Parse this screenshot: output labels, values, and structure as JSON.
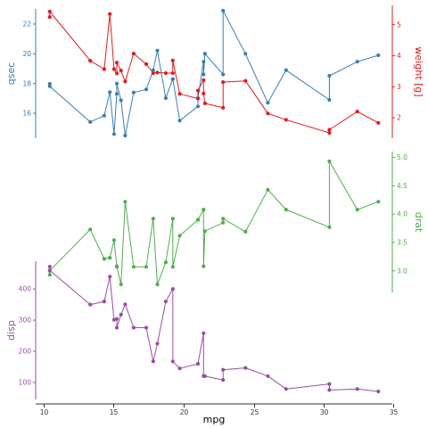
{
  "chart_data": {
    "type": "line",
    "x": [
      10.4,
      10.4,
      13.3,
      14.3,
      14.7,
      15.0,
      15.2,
      15.2,
      15.5,
      15.8,
      16.4,
      17.3,
      17.8,
      18.1,
      18.7,
      19.2,
      19.2,
      19.7,
      21.0,
      21.0,
      21.4,
      21.4,
      21.5,
      22.8,
      22.8,
      24.4,
      26.0,
      27.3,
      30.4,
      30.4,
      32.4,
      33.9
    ],
    "xlabel": "mpg",
    "xlim": [
      9.6,
      34.9
    ],
    "xticks": [
      "10",
      "15",
      "20",
      "25",
      "30",
      "35"
    ],
    "colors": {
      "qsec": "#377eb8",
      "weight": "#e41a1c",
      "drat": "#4daf4a",
      "disp": "#984ea3",
      "connector": "#333333"
    },
    "series": [
      {
        "name": "qsec",
        "ylabel": "qsec",
        "axis_side": "left",
        "ylim": [
          14.5,
          22.9
        ],
        "yticks": [
          "16",
          "18",
          "20",
          "22"
        ],
        "values": [
          17.98,
          17.82,
          15.41,
          15.84,
          17.42,
          14.6,
          17.3,
          18.0,
          16.87,
          14.5,
          17.4,
          17.6,
          18.9,
          20.22,
          17.02,
          18.3,
          18.3,
          15.5,
          16.46,
          17.02,
          19.47,
          18.61,
          20.01,
          18.61,
          22.9,
          20.0,
          16.7,
          18.9,
          16.9,
          18.52,
          19.47,
          19.9
        ]
      },
      {
        "name": "weight",
        "ylabel": "weight [g]",
        "axis_side": "right",
        "ylim": [
          1.513,
          5.424
        ],
        "yticks": [
          "2",
          "3",
          "4",
          "5"
        ],
        "values": [
          5.25,
          5.424,
          3.84,
          3.57,
          5.345,
          3.57,
          3.435,
          3.78,
          3.52,
          3.17,
          4.07,
          3.73,
          3.44,
          3.46,
          3.44,
          3.44,
          3.845,
          2.77,
          2.62,
          2.875,
          3.215,
          2.78,
          2.465,
          2.32,
          3.15,
          3.19,
          2.14,
          1.935,
          1.513,
          1.615,
          2.2,
          1.835
        ]
      },
      {
        "name": "drat",
        "ylabel": "drat",
        "axis_side": "right",
        "ylim": [
          2.76,
          4.93
        ],
        "yticks": [
          "3.0",
          "3.5",
          "4.0",
          "4.5",
          "5.0"
        ],
        "values": [
          2.93,
          3.0,
          3.73,
          3.21,
          3.23,
          3.54,
          3.07,
          3.08,
          2.76,
          4.22,
          3.07,
          3.07,
          3.92,
          2.76,
          3.15,
          3.92,
          3.07,
          3.62,
          3.9,
          3.9,
          4.08,
          3.08,
          3.7,
          3.85,
          3.92,
          3.69,
          4.43,
          4.08,
          3.77,
          4.93,
          4.08,
          4.22
        ]
      },
      {
        "name": "disp",
        "ylabel": "disp",
        "axis_side": "left",
        "ylim": [
          71.1,
          472.0
        ],
        "yticks": [
          "100",
          "200",
          "300",
          "400"
        ],
        "values": [
          472.0,
          460.0,
          350.0,
          360.0,
          440.0,
          301.0,
          304.0,
          275.8,
          318.0,
          351.0,
          275.8,
          275.8,
          167.6,
          225.0,
          360.0,
          400.0,
          167.6,
          145.0,
          160.0,
          160.0,
          258.0,
          121.0,
          120.1,
          108.0,
          140.8,
          146.7,
          120.3,
          79.0,
          95.1,
          75.7,
          78.7,
          71.1
        ]
      }
    ]
  }
}
